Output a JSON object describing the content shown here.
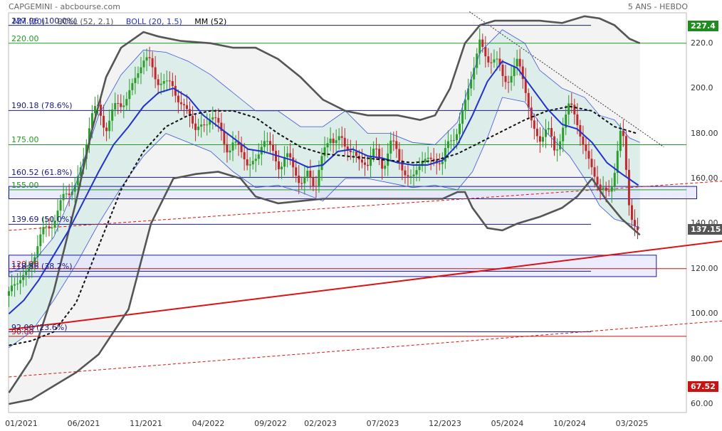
{
  "header": {
    "title": "CAPGEMINI - abcbourse.com",
    "period": "5 ANS - HEBDO"
  },
  "legend": [
    {
      "label": "MM (20)",
      "color": "#2233cc"
    },
    {
      "label": "BOLL (52, 2.1)",
      "color": "#555555"
    },
    {
      "label": "BOLL (20, 1.5)",
      "color": "#2233cc"
    },
    {
      "label": "MM (52)",
      "color": "#000000"
    }
  ],
  "badges": {
    "top": {
      "text": "227.4",
      "color": "#1e8c1e"
    },
    "last": {
      "text": "137.15",
      "color": "#555555"
    },
    "low": {
      "text": "67.52",
      "color": "#cc1111"
    }
  },
  "chart_data": {
    "type": "line",
    "ylim": [
      60,
      233
    ],
    "yticks": [
      60,
      80,
      100,
      120,
      140,
      160,
      180,
      200,
      220
    ],
    "ytick_labels": [
      "60.00",
      "80.00",
      "100.00",
      "120.00",
      "140.00",
      "160.00",
      "180.00",
      "200.0",
      "220.0"
    ],
    "xticks": [
      {
        "label": "01/2021",
        "t": 0.0833
      },
      {
        "label": "06/2021",
        "t": 0.5
      },
      {
        "label": "11/2021",
        "t": 0.9167
      },
      {
        "label": "04/2022",
        "t": 1.3333
      },
      {
        "label": "09/2022",
        "t": 1.75
      },
      {
        "label": "02/2023",
        "t": 2.0833
      },
      {
        "label": "07/2023",
        "t": 2.5
      },
      {
        "label": "12/2023",
        "t": 2.9167
      },
      {
        "label": "05/2024",
        "t": 3.3333
      },
      {
        "label": "10/2024",
        "t": 3.75
      },
      {
        "label": "03/2025",
        "t": 4.1667
      }
    ],
    "levels": [
      {
        "label": "227.96 (100.0%)",
        "value": 227.96,
        "color": "#1a1a7a"
      },
      {
        "label": "220.00",
        "value": 220,
        "color": "#1e9c1e"
      },
      {
        "label": "190.18 (78.6%)",
        "value": 190.18,
        "color": "#1a1a7a"
      },
      {
        "label": "175.00",
        "value": 175,
        "color": "#1e9c1e"
      },
      {
        "label": "160.52 (61.8%)",
        "value": 160.52,
        "color": "#1a1a7a"
      },
      {
        "label": "155.00",
        "value": 155,
        "color": "#1e9c1e"
      },
      {
        "label": "139.69 (50.0%)",
        "value": 139.69,
        "color": "#1a1a7a"
      },
      {
        "label": "120.00",
        "value": 120,
        "color": "#cc1111"
      },
      {
        "label": "118.86 (38.2%)",
        "value": 118.86,
        "color": "#1a1a7a"
      },
      {
        "label": "92.00 (23.6%)",
        "value": 92,
        "color": "#1a1a7a"
      },
      {
        "label": "90.00",
        "value": 90,
        "color": "#cc1111"
      }
    ],
    "zones": [
      {
        "from": 151,
        "to": 156.5,
        "t0": 0,
        "t1": 4.6
      },
      {
        "from": 116.5,
        "to": 126,
        "t0": 0,
        "t1": 4.33
      }
    ],
    "trendlines": [
      {
        "points": [
          [
            0.0,
            93.0
          ],
          [
            4.8,
            132.5
          ]
        ],
        "color": "#dd1111",
        "style": "solid"
      },
      {
        "points": [
          [
            0.0,
            137.0
          ],
          [
            4.8,
            159.0
          ]
        ],
        "color": "#dd1111",
        "style": "dashed"
      },
      {
        "points": [
          [
            0.0,
            72.0
          ],
          [
            4.8,
            97.0
          ]
        ],
        "color": "#dd1111",
        "style": "dashed"
      },
      {
        "points": [
          [
            3.08,
            234.0
          ],
          [
            4.38,
            174.0
          ]
        ],
        "color": "#333333",
        "style": "dotted"
      }
    ],
    "x_end": 4.21,
    "close": [
      [
        0.0,
        108
      ],
      [
        0.05,
        112
      ],
      [
        0.1,
        118
      ],
      [
        0.15,
        124
      ],
      [
        0.2,
        130
      ],
      [
        0.25,
        137
      ],
      [
        0.3,
        145
      ],
      [
        0.35,
        148
      ],
      [
        0.4,
        152
      ],
      [
        0.45,
        160
      ],
      [
        0.5,
        170
      ],
      [
        0.55,
        185
      ],
      [
        0.6,
        192
      ],
      [
        0.65,
        185
      ],
      [
        0.7,
        188
      ],
      [
        0.75,
        192
      ],
      [
        0.8,
        200
      ],
      [
        0.85,
        205
      ],
      [
        0.9,
        210
      ],
      [
        0.95,
        213
      ],
      [
        1.0,
        205
      ],
      [
        1.05,
        198
      ],
      [
        1.1,
        202
      ],
      [
        1.15,
        195
      ],
      [
        1.2,
        188
      ],
      [
        1.25,
        180
      ],
      [
        1.3,
        185
      ],
      [
        1.35,
        190
      ],
      [
        1.4,
        180
      ],
      [
        1.45,
        175
      ],
      [
        1.5,
        178
      ],
      [
        1.55,
        170
      ],
      [
        1.6,
        165
      ],
      [
        1.65,
        170
      ],
      [
        1.7,
        178
      ],
      [
        1.75,
        170
      ],
      [
        1.8,
        168
      ],
      [
        1.85,
        172
      ],
      [
        1.9,
        162
      ],
      [
        1.95,
        158
      ],
      [
        2.0,
        165
      ],
      [
        2.05,
        155
      ],
      [
        2.1,
        168
      ],
      [
        2.15,
        182
      ],
      [
        2.2,
        178
      ],
      [
        2.25,
        170
      ],
      [
        2.3,
        175
      ],
      [
        2.35,
        168
      ],
      [
        2.4,
        165
      ],
      [
        2.45,
        172
      ],
      [
        2.5,
        168
      ],
      [
        2.55,
        175
      ],
      [
        2.6,
        168
      ],
      [
        2.65,
        165
      ],
      [
        2.7,
        160
      ],
      [
        2.75,
        165
      ],
      [
        2.8,
        168
      ],
      [
        2.85,
        172
      ],
      [
        2.9,
        165
      ],
      [
        2.95,
        175
      ],
      [
        3.0,
        185
      ],
      [
        3.05,
        192
      ],
      [
        3.1,
        205
      ],
      [
        3.15,
        222
      ],
      [
        3.2,
        215
      ],
      [
        3.25,
        210
      ],
      [
        3.3,
        205
      ],
      [
        3.35,
        208
      ],
      [
        3.4,
        210
      ],
      [
        3.45,
        200
      ],
      [
        3.5,
        185
      ],
      [
        3.55,
        178
      ],
      [
        3.6,
        180
      ],
      [
        3.65,
        172
      ],
      [
        3.7,
        185
      ],
      [
        3.75,
        190
      ],
      [
        3.8,
        185
      ],
      [
        3.85,
        175
      ],
      [
        3.9,
        165
      ],
      [
        3.95,
        152
      ],
      [
        4.0,
        155
      ],
      [
        4.05,
        165
      ],
      [
        4.1,
        180
      ],
      [
        4.15,
        148
      ],
      [
        4.21,
        137
      ]
    ],
    "mm20": [
      [
        0.0,
        100
      ],
      [
        0.1,
        106
      ],
      [
        0.2,
        115
      ],
      [
        0.3,
        126
      ],
      [
        0.4,
        137
      ],
      [
        0.5,
        150
      ],
      [
        0.6,
        163
      ],
      [
        0.7,
        175
      ],
      [
        0.8,
        183
      ],
      [
        0.9,
        192
      ],
      [
        1.0,
        198
      ],
      [
        1.1,
        200
      ],
      [
        1.2,
        196
      ],
      [
        1.3,
        188
      ],
      [
        1.4,
        183
      ],
      [
        1.5,
        178
      ],
      [
        1.6,
        173
      ],
      [
        1.7,
        172
      ],
      [
        1.8,
        170
      ],
      [
        1.9,
        168
      ],
      [
        2.0,
        165
      ],
      [
        2.1,
        166
      ],
      [
        2.2,
        172
      ],
      [
        2.3,
        173
      ],
      [
        2.4,
        170
      ],
      [
        2.5,
        169
      ],
      [
        2.6,
        167
      ],
      [
        2.7,
        166
      ],
      [
        2.8,
        166
      ],
      [
        2.9,
        168
      ],
      [
        3.0,
        175
      ],
      [
        3.1,
        188
      ],
      [
        3.2,
        203
      ],
      [
        3.3,
        212
      ],
      [
        3.4,
        209
      ],
      [
        3.5,
        200
      ],
      [
        3.6,
        191
      ],
      [
        3.7,
        184
      ],
      [
        3.8,
        182
      ],
      [
        3.9,
        176
      ],
      [
        4.0,
        167
      ],
      [
        4.1,
        162
      ],
      [
        4.21,
        157
      ]
    ],
    "mm52": [
      [
        0.0,
        86
      ],
      [
        0.15,
        88
      ],
      [
        0.3,
        92
      ],
      [
        0.45,
        105
      ],
      [
        0.6,
        130
      ],
      [
        0.75,
        155
      ],
      [
        0.9,
        172
      ],
      [
        1.05,
        183
      ],
      [
        1.2,
        188
      ],
      [
        1.35,
        190
      ],
      [
        1.5,
        190
      ],
      [
        1.65,
        187
      ],
      [
        1.8,
        180
      ],
      [
        1.95,
        174
      ],
      [
        2.1,
        171
      ],
      [
        2.25,
        170
      ],
      [
        2.4,
        169
      ],
      [
        2.55,
        168
      ],
      [
        2.7,
        167
      ],
      [
        2.85,
        168
      ],
      [
        3.0,
        171
      ],
      [
        3.15,
        176
      ],
      [
        3.3,
        181
      ],
      [
        3.45,
        186
      ],
      [
        3.6,
        190
      ],
      [
        3.75,
        192
      ],
      [
        3.9,
        190
      ],
      [
        4.05,
        183
      ],
      [
        4.2,
        180
      ]
    ],
    "boll52_upper": [
      [
        0.0,
        65
      ],
      [
        0.15,
        80
      ],
      [
        0.3,
        110
      ],
      [
        0.45,
        150
      ],
      [
        0.55,
        180
      ],
      [
        0.65,
        205
      ],
      [
        0.75,
        218
      ],
      [
        0.9,
        225
      ],
      [
        1.0,
        223
      ],
      [
        1.15,
        221
      ],
      [
        1.35,
        220
      ],
      [
        1.5,
        218
      ],
      [
        1.65,
        218
      ],
      [
        1.8,
        213
      ],
      [
        1.95,
        205
      ],
      [
        2.1,
        195
      ],
      [
        2.25,
        190
      ],
      [
        2.4,
        188
      ],
      [
        2.6,
        188
      ],
      [
        2.75,
        186
      ],
      [
        2.85,
        188
      ],
      [
        2.95,
        200
      ],
      [
        3.05,
        220
      ],
      [
        3.15,
        228
      ],
      [
        3.25,
        230
      ],
      [
        3.4,
        230
      ],
      [
        3.55,
        230
      ],
      [
        3.7,
        229
      ],
      [
        3.85,
        232
      ],
      [
        3.95,
        231
      ],
      [
        4.05,
        228
      ],
      [
        4.15,
        222
      ],
      [
        4.22,
        220
      ]
    ],
    "boll52_lower": [
      [
        0.0,
        60
      ],
      [
        0.15,
        62
      ],
      [
        0.3,
        68
      ],
      [
        0.45,
        74
      ],
      [
        0.6,
        82
      ],
      [
        0.7,
        92
      ],
      [
        0.8,
        102
      ],
      [
        0.95,
        140
      ],
      [
        1.1,
        160
      ],
      [
        1.25,
        162
      ],
      [
        1.4,
        163
      ],
      [
        1.55,
        160
      ],
      [
        1.65,
        152
      ],
      [
        1.8,
        149
      ],
      [
        1.95,
        150
      ],
      [
        2.1,
        151
      ],
      [
        2.3,
        151
      ],
      [
        2.5,
        151
      ],
      [
        2.7,
        151
      ],
      [
        2.9,
        151
      ],
      [
        3.0,
        154
      ],
      [
        3.05,
        154
      ],
      [
        3.1,
        147
      ],
      [
        3.2,
        138
      ],
      [
        3.3,
        137
      ],
      [
        3.4,
        140
      ],
      [
        3.55,
        143
      ],
      [
        3.7,
        147
      ],
      [
        3.8,
        152
      ],
      [
        3.9,
        160
      ],
      [
        4.0,
        150
      ],
      [
        4.1,
        142
      ],
      [
        4.22,
        135
      ]
    ],
    "boll20_upper": [
      [
        0.0,
        118
      ],
      [
        0.15,
        122
      ],
      [
        0.3,
        134
      ],
      [
        0.45,
        158
      ],
      [
        0.6,
        188
      ],
      [
        0.75,
        206
      ],
      [
        0.9,
        217
      ],
      [
        1.05,
        216
      ],
      [
        1.2,
        212
      ],
      [
        1.35,
        206
      ],
      [
        1.5,
        198
      ],
      [
        1.65,
        190
      ],
      [
        1.8,
        190
      ],
      [
        1.95,
        183
      ],
      [
        2.1,
        183
      ],
      [
        2.25,
        190
      ],
      [
        2.4,
        180
      ],
      [
        2.55,
        180
      ],
      [
        2.7,
        176
      ],
      [
        2.85,
        175
      ],
      [
        3.0,
        185
      ],
      [
        3.15,
        216
      ],
      [
        3.3,
        226
      ],
      [
        3.45,
        220
      ],
      [
        3.55,
        208
      ],
      [
        3.7,
        200
      ],
      [
        3.85,
        196
      ],
      [
        3.95,
        188
      ],
      [
        4.05,
        186
      ],
      [
        4.15,
        178
      ],
      [
        4.22,
        176
      ]
    ],
    "boll20_lower": [
      [
        0.0,
        85
      ],
      [
        0.15,
        92
      ],
      [
        0.3,
        106
      ],
      [
        0.45,
        122
      ],
      [
        0.6,
        140
      ],
      [
        0.75,
        156
      ],
      [
        0.9,
        170
      ],
      [
        1.05,
        180
      ],
      [
        1.2,
        176
      ],
      [
        1.35,
        172
      ],
      [
        1.5,
        163
      ],
      [
        1.65,
        156
      ],
      [
        1.8,
        157
      ],
      [
        1.95,
        154
      ],
      [
        2.1,
        150
      ],
      [
        2.25,
        160
      ],
      [
        2.4,
        160
      ],
      [
        2.55,
        158
      ],
      [
        2.7,
        156
      ],
      [
        2.85,
        157
      ],
      [
        3.0,
        155
      ],
      [
        3.1,
        163
      ],
      [
        3.2,
        178
      ],
      [
        3.3,
        196
      ],
      [
        3.45,
        194
      ],
      [
        3.6,
        180
      ],
      [
        3.75,
        170
      ],
      [
        3.85,
        160
      ],
      [
        3.95,
        148
      ],
      [
        4.05,
        142
      ],
      [
        4.15,
        140
      ],
      [
        4.22,
        138
      ]
    ]
  }
}
